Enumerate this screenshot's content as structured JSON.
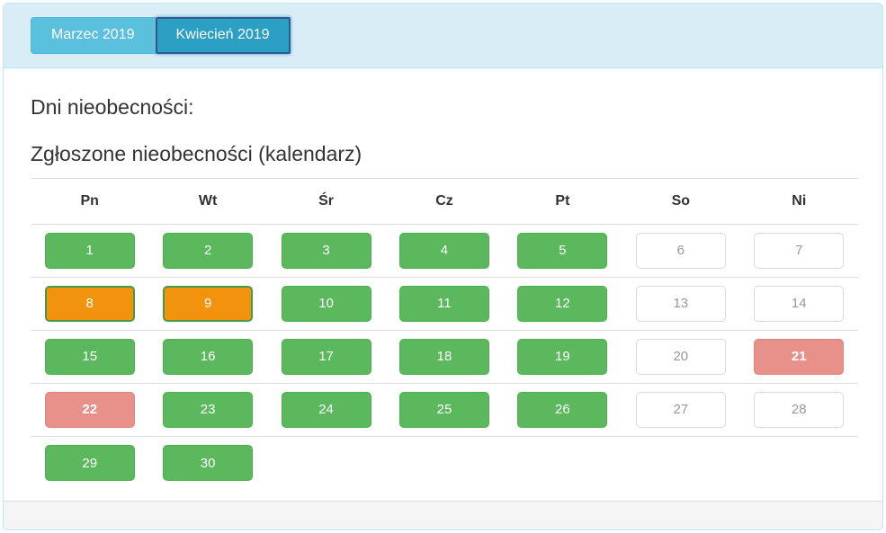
{
  "header": {
    "tabs": [
      {
        "label": "Marzec 2019",
        "active": false
      },
      {
        "label": "Kwiecień 2019",
        "active": true
      }
    ]
  },
  "main": {
    "title": "Dni nieobecności:",
    "subtitle": "Zgłoszone nieobecności (kalendarz)"
  },
  "calendar": {
    "weekday_headers": [
      "Pn",
      "Wt",
      "Śr",
      "Cz",
      "Pt",
      "So",
      "Ni"
    ],
    "weeks": [
      [
        {
          "day": "1",
          "status": "green"
        },
        {
          "day": "2",
          "status": "green"
        },
        {
          "day": "3",
          "status": "green"
        },
        {
          "day": "4",
          "status": "green"
        },
        {
          "day": "5",
          "status": "green"
        },
        {
          "day": "6",
          "status": "plain"
        },
        {
          "day": "7",
          "status": "plain"
        }
      ],
      [
        {
          "day": "8",
          "status": "orange"
        },
        {
          "day": "9",
          "status": "orange"
        },
        {
          "day": "10",
          "status": "green"
        },
        {
          "day": "11",
          "status": "green"
        },
        {
          "day": "12",
          "status": "green"
        },
        {
          "day": "13",
          "status": "plain"
        },
        {
          "day": "14",
          "status": "plain"
        }
      ],
      [
        {
          "day": "15",
          "status": "green"
        },
        {
          "day": "16",
          "status": "green"
        },
        {
          "day": "17",
          "status": "green"
        },
        {
          "day": "18",
          "status": "green"
        },
        {
          "day": "19",
          "status": "green"
        },
        {
          "day": "20",
          "status": "plain"
        },
        {
          "day": "21",
          "status": "pink"
        }
      ],
      [
        {
          "day": "22",
          "status": "pink"
        },
        {
          "day": "23",
          "status": "green"
        },
        {
          "day": "24",
          "status": "green"
        },
        {
          "day": "25",
          "status": "green"
        },
        {
          "day": "26",
          "status": "green"
        },
        {
          "day": "27",
          "status": "plain"
        },
        {
          "day": "28",
          "status": "plain"
        }
      ],
      [
        {
          "day": "29",
          "status": "green"
        },
        {
          "day": "30",
          "status": "green"
        },
        {
          "status": "empty"
        },
        {
          "status": "empty"
        },
        {
          "status": "empty"
        },
        {
          "status": "empty"
        },
        {
          "status": "empty"
        }
      ]
    ]
  },
  "colors": {
    "panel_border": "#bce8f1",
    "panel_heading_bg": "#d9edf7",
    "tab_inactive_bg": "#5bc0de",
    "tab_active_bg": "#2b9fc4",
    "day_green": "#5cb85c",
    "day_orange": "#f2930d",
    "day_pink": "#e8918a",
    "day_weekend_bg": "#ffffff",
    "footer_bg": "#f5f5f5"
  }
}
